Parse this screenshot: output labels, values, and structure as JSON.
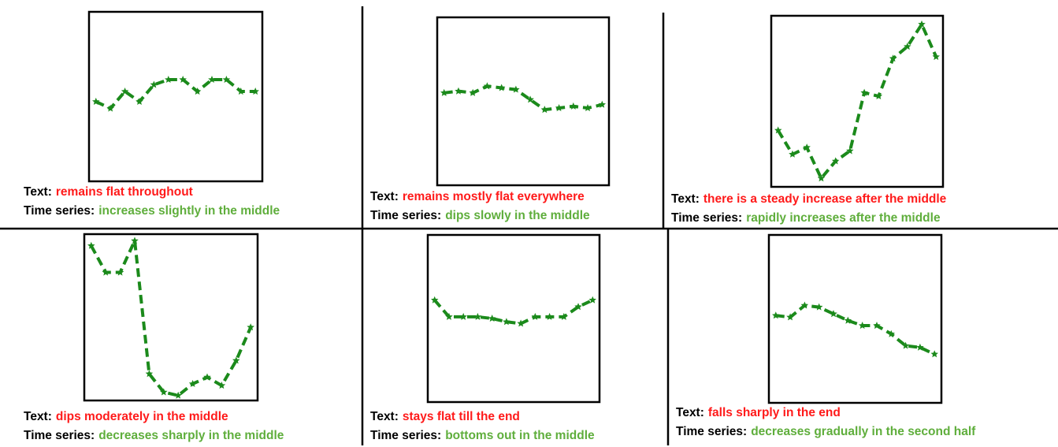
{
  "chart_data": [
    {
      "type": "line",
      "color": "#1b8a1b",
      "ylim": [
        0,
        1
      ],
      "text_prefix": "Text:",
      "text": "remains flat throughout",
      "text_color": "#ff1a1a",
      "series_prefix": "Time series:",
      "series_text": "increases slightly in the middle",
      "series_text_color": "#5fae3c",
      "values": [
        0.47,
        0.43,
        0.53,
        0.47,
        0.57,
        0.6,
        0.6,
        0.53,
        0.6,
        0.6,
        0.53,
        0.53
      ]
    },
    {
      "type": "line",
      "color": "#1b8a1b",
      "ylim": [
        0,
        1
      ],
      "text_prefix": "Text:",
      "text": "remains mostly flat everywhere",
      "text_color": "#ff1a1a",
      "series_prefix": "Time series:",
      "series_text": "dips slowly in the middle",
      "series_text_color": "#5fae3c",
      "values": [
        0.55,
        0.56,
        0.55,
        0.59,
        0.58,
        0.57,
        0.51,
        0.45,
        0.46,
        0.47,
        0.46,
        0.48
      ]
    },
    {
      "type": "line",
      "color": "#1b8a1b",
      "ylim": [
        0,
        1
      ],
      "text_prefix": "Text:",
      "text": "there is a steady increase after the middle",
      "text_color": "#ff1a1a",
      "series_prefix": "Time series:",
      "series_text": "rapidly increases after the middle",
      "series_text_color": "#5fae3c",
      "values": [
        0.33,
        0.19,
        0.23,
        0.05,
        0.15,
        0.21,
        0.55,
        0.53,
        0.75,
        0.82,
        0.95,
        0.76
      ]
    },
    {
      "type": "line",
      "color": "#1b8a1b",
      "ylim": [
        0,
        1
      ],
      "text_prefix": "Text:",
      "text": "dips moderately in the middle",
      "text_color": "#ff1a1a",
      "series_prefix": "Time series:",
      "series_text": "decreases sharply in the middle",
      "series_text_color": "#5fae3c",
      "values": [
        0.93,
        0.77,
        0.77,
        0.96,
        0.16,
        0.05,
        0.03,
        0.1,
        0.14,
        0.09,
        0.24,
        0.44
      ]
    },
    {
      "type": "line",
      "color": "#1b8a1b",
      "ylim": [
        0,
        1
      ],
      "text_prefix": "Text:",
      "text": "stays flat till the end",
      "text_color": "#ff1a1a",
      "series_prefix": "Time series:",
      "series_text": "bottoms out in the middle",
      "series_text_color": "#5fae3c",
      "values": [
        0.61,
        0.51,
        0.51,
        0.51,
        0.5,
        0.48,
        0.47,
        0.51,
        0.51,
        0.51,
        0.57,
        0.61
      ]
    },
    {
      "type": "line",
      "color": "#1b8a1b",
      "ylim": [
        0,
        1
      ],
      "text_prefix": "Text:",
      "text": "falls sharply in the end",
      "text_color": "#ff1a1a",
      "series_prefix": "Time series:",
      "series_text": "decreases gradually in the second half",
      "series_text_color": "#5fae3c",
      "values": [
        0.52,
        0.51,
        0.58,
        0.57,
        0.53,
        0.49,
        0.46,
        0.46,
        0.41,
        0.34,
        0.33,
        0.29
      ]
    }
  ]
}
